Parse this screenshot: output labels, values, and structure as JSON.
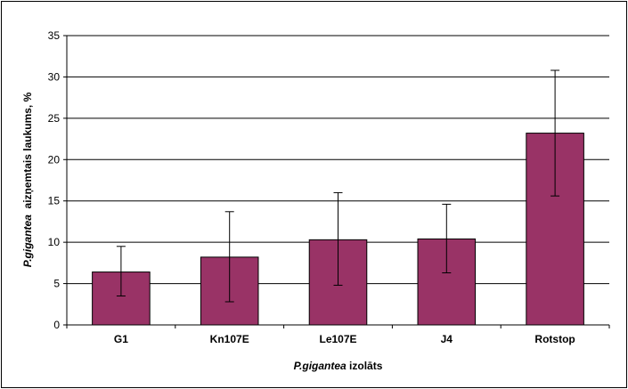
{
  "chart_data": {
    "type": "bar",
    "categories": [
      "G1",
      "Kn107E",
      "Le107E",
      "J4",
      "Rotstop"
    ],
    "values": [
      6.4,
      8.2,
      10.3,
      10.4,
      23.2
    ],
    "error_bars": [
      {
        "low": 3.5,
        "high": 9.5
      },
      {
        "low": 2.8,
        "high": 13.7
      },
      {
        "low": 4.8,
        "high": 16.0
      },
      {
        "low": 6.3,
        "high": 14.6
      },
      {
        "low": 15.6,
        "high": 30.8
      }
    ],
    "ylim": [
      0,
      35
    ],
    "yticks": [
      "0",
      "5",
      "10",
      "15",
      "20",
      "25",
      "30",
      "35"
    ],
    "ytick_values": [
      0,
      5,
      10,
      15,
      20,
      25,
      30,
      35
    ],
    "xlabel_species": "P.gigantea",
    "xlabel_rest": " izolāts",
    "ylabel_species": "P.gigantea",
    "ylabel_rest": "  aizņemtais laukums, %",
    "grid": true,
    "bar_color": "#993366",
    "legend": "none"
  }
}
